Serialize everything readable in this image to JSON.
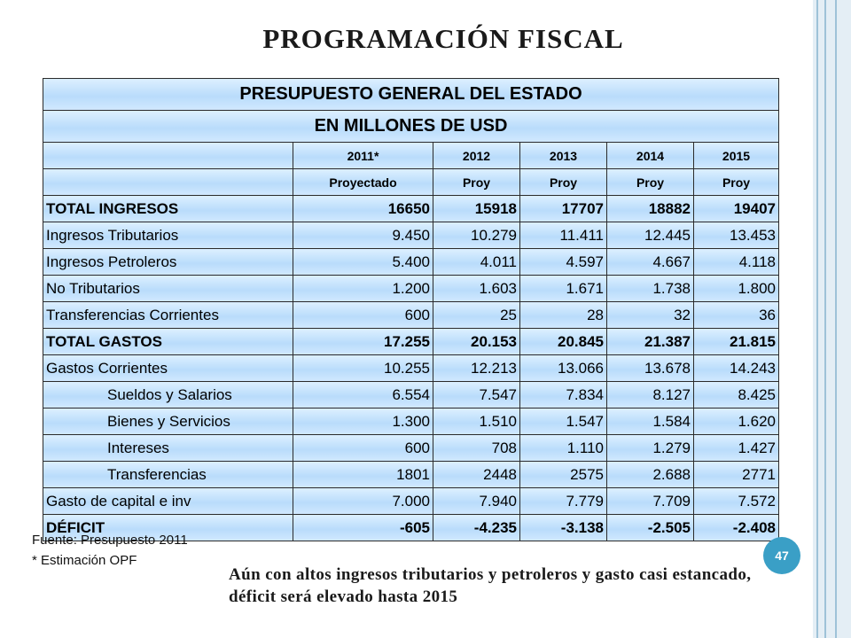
{
  "slide": {
    "title": "PROGRAMACIÓN FISCAL",
    "slide_number": "47",
    "source_note": "Fuente: Presupuesto 2011",
    "estimate_note": "* Estimación OPF",
    "conclusion": "Aún con altos ingresos tributarios y petroleros y gasto casi estancado, déficit será elevado hasta 2015"
  },
  "table": {
    "header_line1": "PRESUPUESTO GENERAL DEL ESTADO",
    "header_line2": "EN MILLONES DE USD",
    "years": [
      "2011*",
      "2012",
      "2013",
      "2014",
      "2015"
    ],
    "subheaders": [
      "Proyectado",
      "Proy",
      "Proy",
      "Proy",
      "Proy"
    ],
    "rows": [
      {
        "label": "TOTAL INGRESOS",
        "values": [
          "16650",
          "15918",
          "17707",
          "18882",
          "19407"
        ]
      },
      {
        "label": "Ingresos Tributarios",
        "values": [
          "9.450",
          "10.279",
          "11.411",
          "12.445",
          "13.453"
        ]
      },
      {
        "label": "Ingresos Petroleros",
        "values": [
          "5.400",
          "4.011",
          "4.597",
          "4.667",
          "4.118"
        ]
      },
      {
        "label": "No Tributarios",
        "values": [
          "1.200",
          "1.603",
          "1.671",
          "1.738",
          "1.800"
        ]
      },
      {
        "label": "Transferencias Corrientes",
        "values": [
          "600",
          "25",
          "28",
          "32",
          "36"
        ]
      },
      {
        "label": "TOTAL GASTOS",
        "values": [
          "17.255",
          "20.153",
          "20.845",
          "21.387",
          "21.815"
        ]
      },
      {
        "label": "Gastos Corrientes",
        "values": [
          "10.255",
          "12.213",
          "13.066",
          "13.678",
          "14.243"
        ]
      },
      {
        "label": "Sueldos y Salarios",
        "values": [
          "6.554",
          "7.547",
          "7.834",
          "8.127",
          "8.425"
        ]
      },
      {
        "label": "Bienes y Servicios",
        "values": [
          "1.300",
          "1.510",
          "1.547",
          "1.584",
          "1.620"
        ]
      },
      {
        "label": "Intereses",
        "values": [
          "600",
          "708",
          "1.110",
          "1.279",
          "1.427"
        ]
      },
      {
        "label": "Transferencias",
        "values": [
          "1801",
          "2448",
          "2575",
          "2.688",
          "2771"
        ]
      },
      {
        "label": "Gasto de capital e inv",
        "values": [
          "7.000",
          "7.940",
          "7.779",
          "7.709",
          "7.572"
        ]
      },
      {
        "label": "DÉFICIT",
        "values": [
          "-605",
          "-4.235",
          "-3.138",
          "-2.505",
          "-2.408"
        ]
      }
    ]
  }
}
